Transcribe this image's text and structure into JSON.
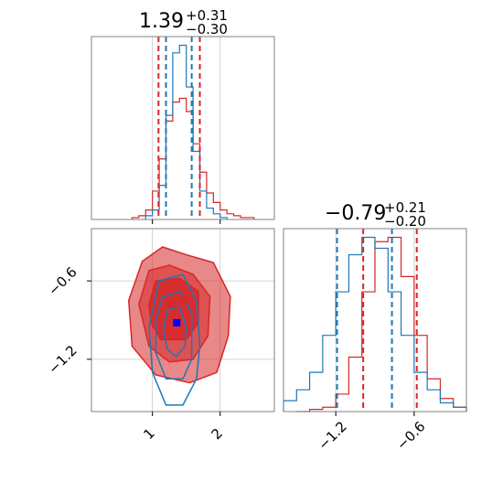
{
  "colors": {
    "red": "#d62728",
    "blue": "#1f77b4",
    "blue_marker": "#0000ff",
    "grid": "#c8c8c8",
    "frame": "#808080"
  },
  "titles": {
    "p1": {
      "value": "1.39",
      "upper": "+0.31",
      "lower": "−0.30"
    },
    "p2": {
      "value": "−0.79",
      "upper": "+0.21",
      "lower": "−0.20"
    }
  },
  "chart_data": [
    {
      "type": "histogram",
      "panel": "top-left",
      "xlim": [
        0.1,
        2.8
      ],
      "xticks": [
        1,
        2
      ],
      "grid": true,
      "vlines": {
        "red": [
          1.09,
          1.7
        ],
        "blue": [
          1.2,
          1.58
        ]
      },
      "series": [
        {
          "color": "red",
          "bin_centers": [
            0.75,
            0.85,
            0.95,
            1.05,
            1.15,
            1.25,
            1.35,
            1.45,
            1.55,
            1.65,
            1.75,
            1.85,
            1.95,
            2.05,
            2.15,
            2.25,
            2.35,
            2.45
          ],
          "values": [
            0.01,
            0.02,
            0.05,
            0.15,
            0.32,
            0.52,
            0.62,
            0.64,
            0.57,
            0.4,
            0.25,
            0.14,
            0.09,
            0.05,
            0.03,
            0.02,
            0.01,
            0.01
          ]
        },
        {
          "color": "blue",
          "bin_centers": [
            0.95,
            1.05,
            1.15,
            1.25,
            1.35,
            1.45,
            1.55,
            1.65,
            1.75,
            1.85,
            1.95,
            2.05
          ],
          "values": [
            0.02,
            0.05,
            0.18,
            0.55,
            0.88,
            0.92,
            0.7,
            0.36,
            0.15,
            0.06,
            0.03,
            0.01
          ]
        }
      ]
    },
    {
      "type": "contour",
      "panel": "bottom-left",
      "xlim": [
        0.1,
        2.8
      ],
      "ylim": [
        -1.6,
        -0.2
      ],
      "xticks": [
        1,
        2
      ],
      "xticklabels": [
        "1",
        "2"
      ],
      "yticks": [
        -1.2,
        -0.6
      ],
      "yticklabels": [
        "−1.2",
        "−0.6"
      ],
      "grid": true,
      "markers": [
        {
          "x": 1.27,
          "y": -0.78,
          "color": "red"
        },
        {
          "x": 1.47,
          "y": -0.74,
          "color": "red"
        },
        {
          "x": 1.36,
          "y": -0.92,
          "color": "blue_marker"
        }
      ],
      "series": [
        {
          "color": "red",
          "levels": [
            {
              "fill": 0.55,
              "points": [
                [
                  0.65,
                  -0.75
                ],
                [
                  0.85,
                  -0.45
                ],
                [
                  1.15,
                  -0.34
                ],
                [
                  1.5,
                  -0.4
                ],
                [
                  1.9,
                  -0.46
                ],
                [
                  2.15,
                  -0.72
                ],
                [
                  2.12,
                  -1.02
                ],
                [
                  1.95,
                  -1.3
                ],
                [
                  1.55,
                  -1.38
                ],
                [
                  1.05,
                  -1.32
                ],
                [
                  0.7,
                  -1.1
                ]
              ]
            },
            {
              "fill": 0.55,
              "points": [
                [
                  0.8,
                  -0.78
                ],
                [
                  0.95,
                  -0.52
                ],
                [
                  1.25,
                  -0.48
                ],
                [
                  1.6,
                  -0.55
                ],
                [
                  1.85,
                  -0.72
                ],
                [
                  1.82,
                  -1.02
                ],
                [
                  1.6,
                  -1.2
                ],
                [
                  1.25,
                  -1.22
                ],
                [
                  0.95,
                  -1.1
                ]
              ]
            },
            {
              "fill": 0.85,
              "points": [
                [
                  0.95,
                  -0.78
                ],
                [
                  1.05,
                  -0.6
                ],
                [
                  1.4,
                  -0.58
                ],
                [
                  1.68,
                  -0.68
                ],
                [
                  1.68,
                  -0.92
                ],
                [
                  1.5,
                  -1.05
                ],
                [
                  1.12,
                  -1.05
                ],
                [
                  0.98,
                  -0.92
                ]
              ]
            }
          ]
        },
        {
          "color": "blue",
          "levels": [
            {
              "fill": 0,
              "points": [
                [
                  1.1,
                  -0.6
                ],
                [
                  1.45,
                  -0.55
                ],
                [
                  1.65,
                  -0.75
                ],
                [
                  1.7,
                  -1.1
                ],
                [
                  1.65,
                  -1.35
                ],
                [
                  1.45,
                  -1.55
                ],
                [
                  1.2,
                  -1.55
                ],
                [
                  1.0,
                  -1.3
                ],
                [
                  0.95,
                  -0.95
                ]
              ]
            },
            {
              "fill": 0,
              "points": [
                [
                  1.15,
                  -0.72
                ],
                [
                  1.42,
                  -0.68
                ],
                [
                  1.58,
                  -0.85
                ],
                [
                  1.58,
                  -1.2
                ],
                [
                  1.45,
                  -1.35
                ],
                [
                  1.2,
                  -1.35
                ],
                [
                  1.05,
                  -1.15
                ],
                [
                  1.05,
                  -0.9
                ]
              ]
            },
            {
              "fill": 0,
              "points": [
                [
                  1.22,
                  -0.82
                ],
                [
                  1.4,
                  -0.8
                ],
                [
                  1.5,
                  -0.95
                ],
                [
                  1.48,
                  -1.1
                ],
                [
                  1.35,
                  -1.18
                ],
                [
                  1.22,
                  -1.12
                ],
                [
                  1.16,
                  -0.98
                ]
              ]
            }
          ]
        }
      ]
    },
    {
      "type": "histogram",
      "panel": "bottom-right",
      "xlim": [
        -1.6,
        -0.2
      ],
      "xticks": [
        -1.2,
        -0.6
      ],
      "xticklabels": [
        "−1.2",
        "−0.6"
      ],
      "grid": true,
      "vlines": {
        "red": [
          -0.99,
          -0.58
        ],
        "blue": [
          -1.19,
          -0.77
        ]
      },
      "series": [
        {
          "color": "red",
          "bin_centers": [
            -1.45,
            -1.35,
            -1.25,
            -1.15,
            -1.05,
            -0.95,
            -0.85,
            -0.75,
            -0.65,
            -0.55,
            -0.45,
            -0.35,
            -0.25
          ],
          "values": [
            0.0,
            0.01,
            0.02,
            0.08,
            0.25,
            0.55,
            0.78,
            0.8,
            0.62,
            0.35,
            0.15,
            0.06,
            0.02
          ]
        },
        {
          "color": "blue",
          "bin_centers": [
            -1.55,
            -1.45,
            -1.35,
            -1.25,
            -1.15,
            -1.05,
            -0.95,
            -0.85,
            -0.75,
            -0.65,
            -0.55,
            -0.45,
            -0.35,
            -0.25
          ],
          "values": [
            0.05,
            0.1,
            0.18,
            0.35,
            0.55,
            0.72,
            0.8,
            0.75,
            0.55,
            0.35,
            0.18,
            0.1,
            0.04,
            0.02
          ]
        }
      ]
    }
  ]
}
